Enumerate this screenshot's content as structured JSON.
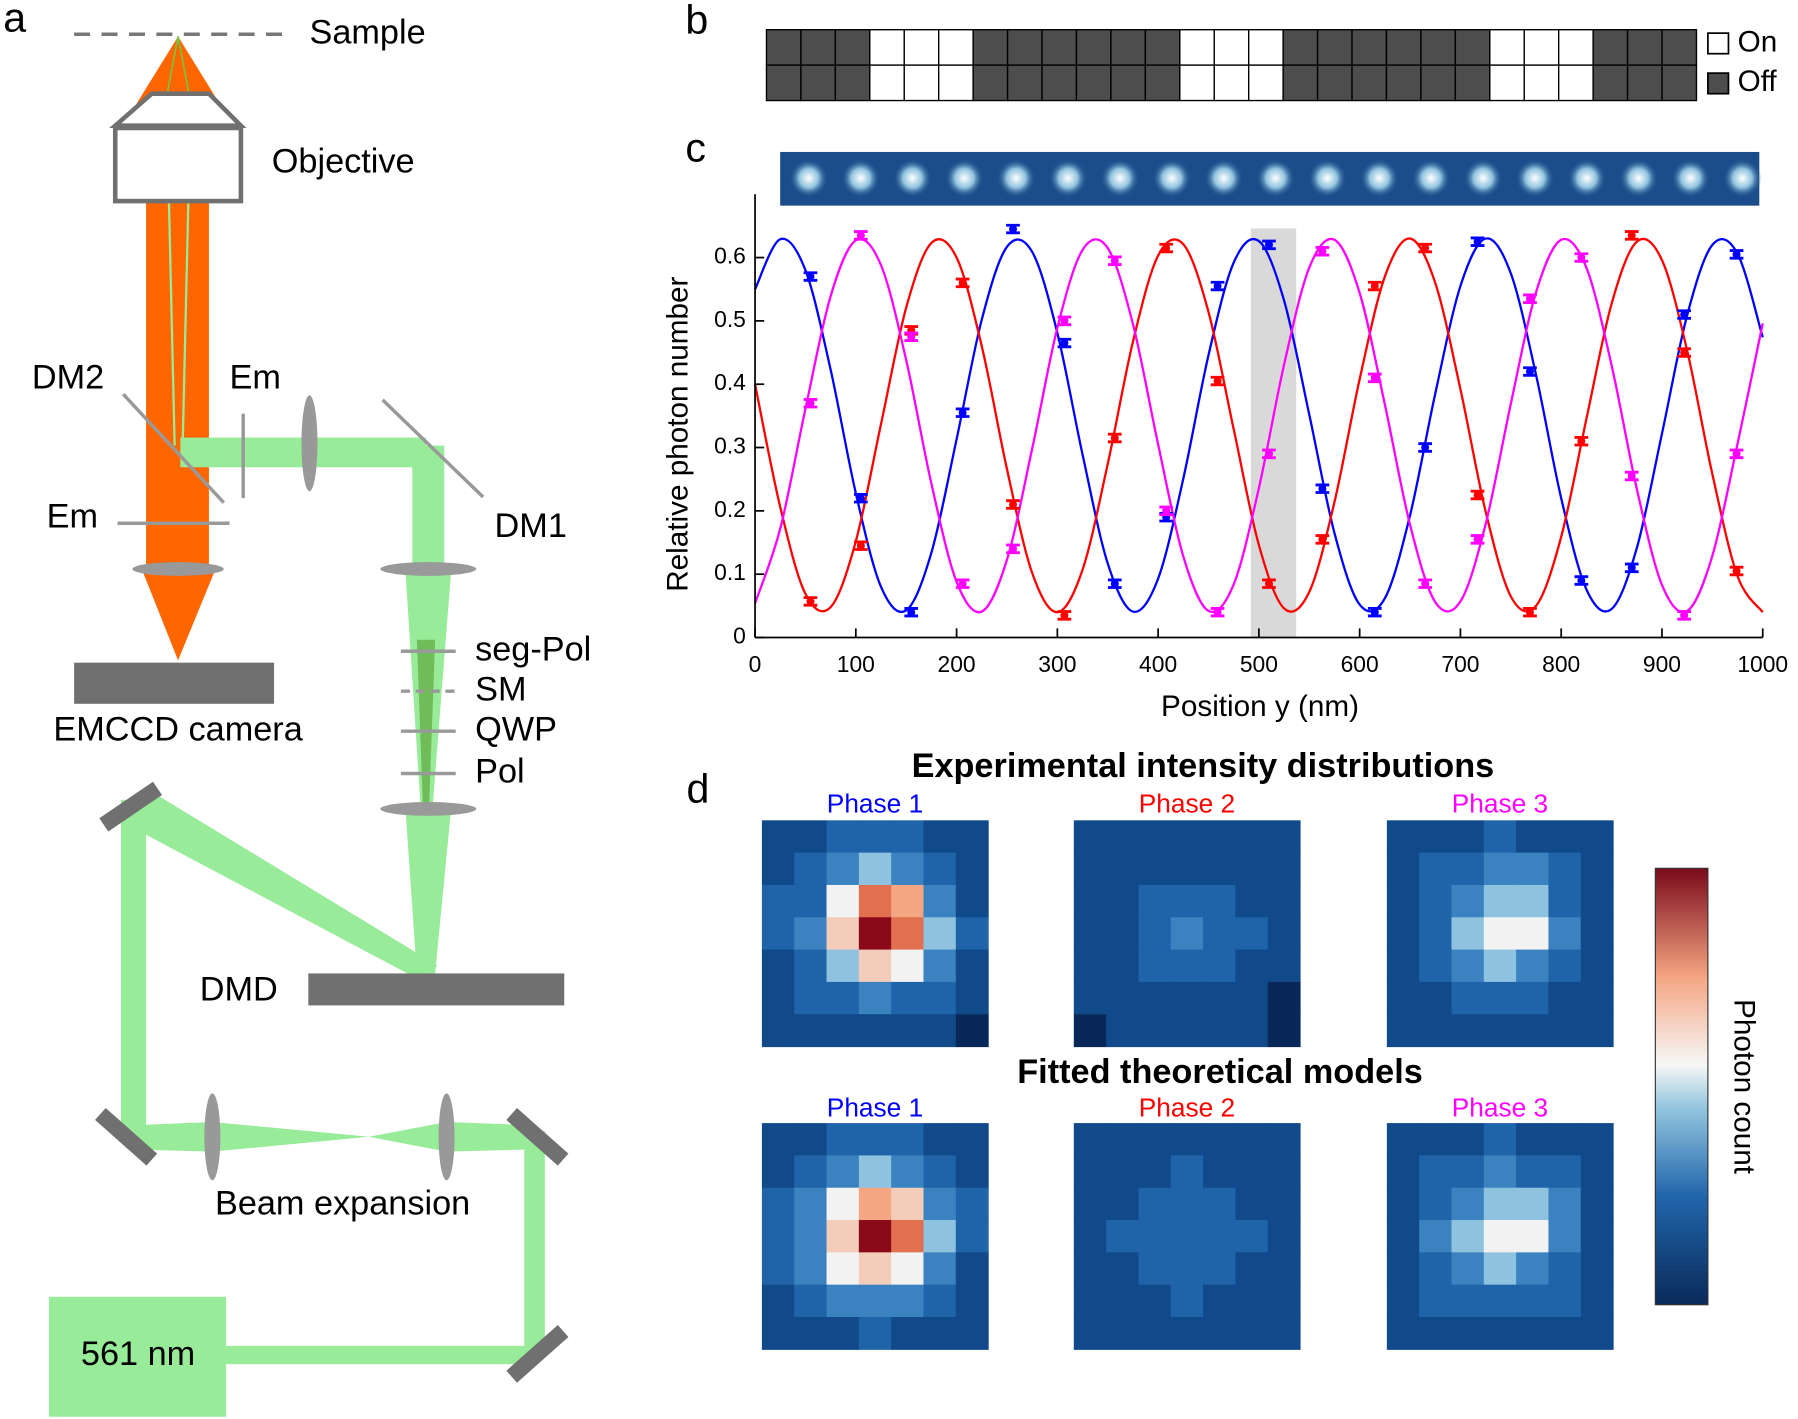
{
  "panel_labels": [
    "a",
    "b",
    "c",
    "d"
  ],
  "diagram": {
    "sample": "Sample",
    "objective": "Objective",
    "dm2": "DM2",
    "em_1": "Em",
    "em_2": "Em",
    "dm1": "DM1",
    "seg_pol": "seg-Pol",
    "sm": "SM",
    "qwp": "QWP",
    "pol": "Pol",
    "camera": "EMCCD camera",
    "dmd": "DMD",
    "beam_expansion": "Beam expansion",
    "laser": "561 nm"
  },
  "pattern": {
    "cells": [
      0,
      0,
      0,
      1,
      1,
      1,
      0,
      0,
      0,
      0,
      0,
      0,
      1,
      1,
      1,
      0,
      0,
      0,
      0,
      0,
      0,
      1,
      1,
      1,
      0,
      0,
      0
    ],
    "legend": [
      "On",
      "Off"
    ],
    "on_color": "#ffffff",
    "off_color": "#4d4d4d"
  },
  "chart_data": {
    "type": "line",
    "ylabel": "Relative photon number",
    "xlabel": "Position y (nm)",
    "xlim": [
      0,
      1000
    ],
    "ylim": [
      0,
      0.7
    ],
    "xticks": [
      0,
      100,
      200,
      300,
      400,
      500,
      600,
      700,
      800,
      900,
      1000
    ],
    "yticks": [
      0,
      0.1,
      0.2,
      0.3,
      0.4,
      0.5,
      0.6
    ],
    "highlight": [
      492,
      537
    ],
    "x": [
      0,
      25,
      50,
      75,
      100,
      125,
      150,
      175,
      200,
      225,
      250,
      275,
      300,
      325,
      350,
      375,
      400,
      425,
      450,
      475,
      500,
      525,
      550,
      575,
      600,
      625,
      650,
      675,
      700,
      725,
      750,
      775,
      800,
      825,
      850,
      875,
      900,
      925,
      950,
      975,
      1000
    ],
    "point_x": [
      55,
      105,
      155,
      206,
      256,
      307,
      357,
      408,
      459,
      510,
      563,
      615,
      665,
      717,
      769,
      820,
      870,
      922,
      974
    ],
    "series": [
      {
        "color": "#0000ff",
        "values": [
          0.55,
          0.629,
          0.58,
          0.423,
          0.228,
          0.08,
          0.043,
          0.134,
          0.313,
          0.502,
          0.617,
          0.609,
          0.481,
          0.289,
          0.117,
          0.041,
          0.093,
          0.251,
          0.446,
          0.592,
          0.626,
          0.532,
          0.352,
          0.165,
          0.052,
          0.062,
          0.193,
          0.385,
          0.555,
          0.63,
          0.575,
          0.415,
          0.22,
          0.076,
          0.045,
          0.141,
          0.322,
          0.509,
          0.62,
          0.606,
          0.474
        ],
        "points": [
          0.57,
          0.22,
          0.04,
          0.355,
          0.645,
          0.465,
          0.085,
          0.19,
          0.555,
          0.62,
          0.235,
          0.04,
          0.3,
          0.625,
          0.42,
          0.09,
          0.11,
          0.51,
          0.605
        ],
        "errors": [
          0.006,
          0.006,
          0.006,
          0.006,
          0.006,
          0.006,
          0.006,
          0.006,
          0.006,
          0.006,
          0.006,
          0.006,
          0.006,
          0.006,
          0.006,
          0.006,
          0.006,
          0.006,
          0.006
        ]
      },
      {
        "color": "#ff0000",
        "values": [
          0.4,
          0.206,
          0.069,
          0.048,
          0.152,
          0.337,
          0.521,
          0.623,
          0.6,
          0.46,
          0.266,
          0.102,
          0.04,
          0.107,
          0.274,
          0.467,
          0.603,
          0.621,
          0.514,
          0.329,
          0.146,
          0.046,
          0.072,
          0.214,
          0.408,
          0.57,
          0.63,
          0.56,
          0.392,
          0.199,
          0.065,
          0.05,
          0.159,
          0.345,
          0.527,
          0.625,
          0.596,
          0.453,
          0.258,
          0.097,
          0.04
        ],
        "points": [
          0.057,
          0.145,
          0.485,
          0.56,
          0.21,
          0.035,
          0.315,
          0.615,
          0.405,
          0.085,
          0.155,
          0.555,
          0.615,
          0.225,
          0.04,
          0.31,
          0.635,
          0.45,
          0.105
        ],
        "errors": [
          0.006,
          0.006,
          0.006,
          0.006,
          0.006,
          0.006,
          0.006,
          0.006,
          0.006,
          0.006,
          0.006,
          0.006,
          0.006,
          0.006,
          0.006,
          0.006,
          0.006,
          0.006,
          0.006
        ]
      },
      {
        "color": "#ff00ff",
        "values": [
          0.054,
          0.172,
          0.361,
          0.539,
          0.627,
          0.588,
          0.438,
          0.243,
          0.088,
          0.041,
          0.123,
          0.298,
          0.489,
          0.612,
          0.615,
          0.495,
          0.305,
          0.128,
          0.042,
          0.084,
          0.236,
          0.431,
          0.584,
          0.628,
          0.544,
          0.368,
          0.178,
          0.056,
          0.057,
          0.179,
          0.369,
          0.545,
          0.628,
          0.584,
          0.43,
          0.235,
          0.083,
          0.042,
          0.129,
          0.306,
          0.496
        ],
        "points": [
          0.37,
          0.635,
          0.475,
          0.085,
          0.14,
          0.5,
          0.595,
          0.2,
          0.04,
          0.29,
          0.61,
          0.41,
          0.085,
          0.155,
          0.535,
          0.6,
          0.255,
          0.035,
          0.29
        ],
        "errors": [
          0.006,
          0.006,
          0.006,
          0.006,
          0.006,
          0.006,
          0.006,
          0.006,
          0.006,
          0.006,
          0.006,
          0.006,
          0.006,
          0.006,
          0.006,
          0.006,
          0.006,
          0.006,
          0.006
        ]
      }
    ]
  },
  "heatmaps": {
    "title_experimental": "Experimental intensity distributions",
    "title_fitted": "Fitted theoretical models",
    "phase_labels": [
      "Phase 1",
      "Phase 2",
      "Phase 3"
    ],
    "phase_colors": [
      "#0000ff",
      "#ff0000",
      "#ff00ff"
    ],
    "colorbar_label": "Photon count",
    "clim": [
      0,
      10
    ],
    "experimental": [
      [
        [
          1,
          1,
          2,
          2,
          2,
          1,
          1
        ],
        [
          1,
          2,
          3,
          4,
          3,
          2,
          1
        ],
        [
          2,
          2,
          5,
          8,
          7,
          3,
          1
        ],
        [
          2,
          3,
          6,
          10,
          8,
          4,
          2
        ],
        [
          1,
          2,
          4,
          6,
          5,
          3,
          1
        ],
        [
          1,
          2,
          2,
          3,
          2,
          2,
          1
        ],
        [
          1,
          1,
          1,
          1,
          1,
          1,
          0
        ]
      ],
      [
        [
          1,
          1,
          1,
          1,
          1,
          1,
          1
        ],
        [
          1,
          1,
          1,
          1,
          1,
          1,
          1
        ],
        [
          1,
          1,
          2,
          2,
          2,
          1,
          1
        ],
        [
          1,
          1,
          2,
          3,
          2,
          2,
          1
        ],
        [
          1,
          1,
          2,
          2,
          2,
          1,
          1
        ],
        [
          1,
          1,
          1,
          1,
          1,
          1,
          0
        ],
        [
          0,
          1,
          1,
          1,
          1,
          1,
          0
        ]
      ],
      [
        [
          1,
          1,
          1,
          2,
          1,
          1,
          1
        ],
        [
          1,
          2,
          2,
          3,
          3,
          2,
          1
        ],
        [
          1,
          2,
          3,
          4,
          4,
          2,
          1
        ],
        [
          1,
          2,
          4,
          5,
          5,
          3,
          1
        ],
        [
          1,
          2,
          3,
          4,
          3,
          2,
          1
        ],
        [
          1,
          1,
          2,
          2,
          2,
          1,
          1
        ],
        [
          1,
          1,
          1,
          1,
          1,
          1,
          1
        ]
      ]
    ],
    "fitted": [
      [
        [
          1,
          1,
          2,
          2,
          2,
          1,
          1
        ],
        [
          1,
          2,
          3,
          4,
          3,
          2,
          1
        ],
        [
          2,
          3,
          5,
          7,
          6,
          3,
          2
        ],
        [
          2,
          3,
          6,
          10,
          8,
          4,
          2
        ],
        [
          2,
          3,
          5,
          6,
          5,
          3,
          1
        ],
        [
          1,
          2,
          3,
          3,
          3,
          2,
          1
        ],
        [
          1,
          1,
          1,
          2,
          1,
          1,
          1
        ]
      ],
      [
        [
          1,
          1,
          1,
          1,
          1,
          1,
          1
        ],
        [
          1,
          1,
          1,
          2,
          1,
          1,
          1
        ],
        [
          1,
          1,
          2,
          2,
          2,
          1,
          1
        ],
        [
          1,
          2,
          2,
          2,
          2,
          2,
          1
        ],
        [
          1,
          1,
          2,
          2,
          2,
          1,
          1
        ],
        [
          1,
          1,
          1,
          2,
          1,
          1,
          1
        ],
        [
          1,
          1,
          1,
          1,
          1,
          1,
          1
        ]
      ],
      [
        [
          1,
          1,
          1,
          2,
          1,
          1,
          1
        ],
        [
          1,
          2,
          2,
          3,
          2,
          2,
          1
        ],
        [
          1,
          2,
          3,
          4,
          4,
          3,
          1
        ],
        [
          1,
          3,
          4,
          5,
          5,
          3,
          1
        ],
        [
          1,
          2,
          3,
          4,
          3,
          2,
          1
        ],
        [
          1,
          2,
          2,
          2,
          2,
          2,
          1
        ],
        [
          1,
          1,
          1,
          1,
          1,
          1,
          1
        ]
      ]
    ]
  }
}
